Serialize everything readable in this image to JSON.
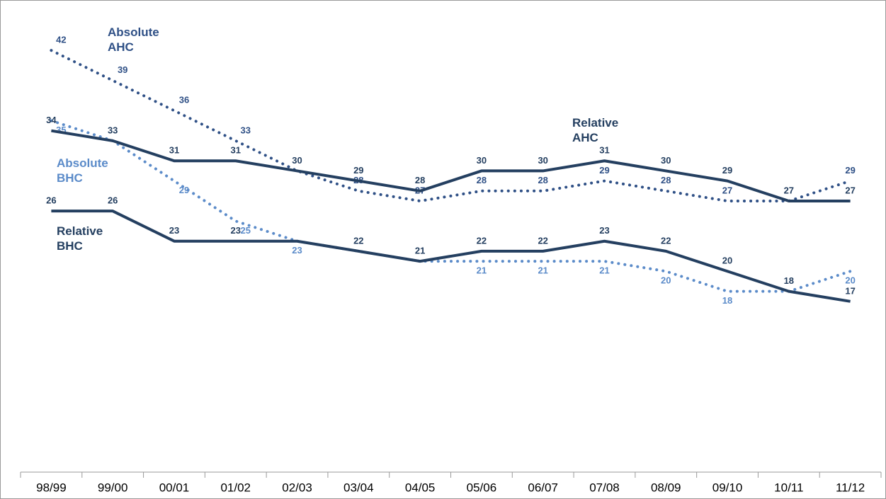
{
  "chart_data": {
    "type": "line",
    "categories": [
      "98/99",
      "99/00",
      "00/01",
      "01/02",
      "02/03",
      "03/04",
      "04/05",
      "05/06",
      "06/07",
      "07/08",
      "08/09",
      "09/10",
      "10/11",
      "11/12"
    ],
    "ylim": [
      0,
      43
    ],
    "series": [
      {
        "name": "Absolute AHC",
        "color": "#2f5086",
        "dash": "dotted",
        "values": [
          42,
          39,
          36,
          33,
          30,
          28,
          27,
          28,
          28,
          29,
          28,
          27,
          27,
          29
        ],
        "value_labels": [
          "42",
          "39",
          "36",
          "33",
          null,
          "28",
          "27",
          "28",
          "28",
          "29",
          "28",
          "27",
          null,
          "29"
        ]
      },
      {
        "name": "Absolute BHC",
        "color": "#5b8bc9",
        "dash": "dotted",
        "values": [
          35,
          33,
          29,
          25,
          23,
          22,
          21,
          21,
          21,
          21,
          20,
          18,
          18,
          20
        ],
        "value_labels": [
          "35",
          null,
          "29",
          "25",
          "23",
          null,
          null,
          "21",
          "21",
          "21",
          "20",
          "18",
          null,
          "20"
        ]
      },
      {
        "name": "Relative AHC",
        "color": "#243f60",
        "dash": "solid",
        "values": [
          34,
          33,
          31,
          31,
          30,
          29,
          28,
          30,
          30,
          31,
          30,
          29,
          27,
          27
        ]
      },
      {
        "name": "Relative BHC",
        "color": "#243f60",
        "dash": "solid",
        "values": [
          26,
          26,
          23,
          23,
          23,
          22,
          21,
          22,
          22,
          23,
          22,
          20,
          18,
          17
        ],
        "value_labels": [
          "26",
          "26",
          "23",
          "23",
          null,
          "22",
          "21",
          "22",
          "22",
          "23",
          "22",
          "20",
          "18",
          "17"
        ]
      }
    ]
  }
}
